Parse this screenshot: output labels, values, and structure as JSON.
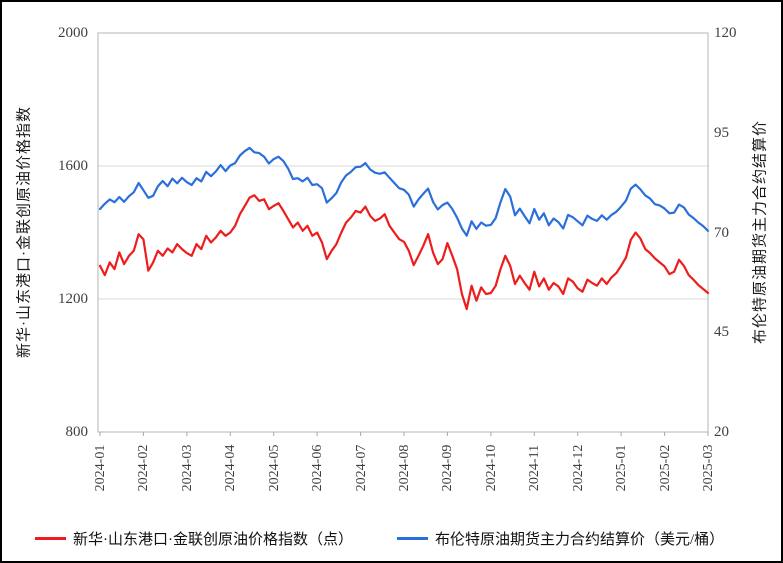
{
  "chart_data": {
    "type": "line",
    "title": "",
    "grid": "horizontal",
    "legend_position": "bottom",
    "categories": [
      "2024-01",
      "2024-02",
      "2024-03",
      "2024-04",
      "2024-05",
      "2024-06",
      "2024-07",
      "2024-08",
      "2024-09",
      "2024-10",
      "2024-11",
      "2024-12",
      "2025-01",
      "2025-02",
      "2025-03"
    ],
    "left_axis": {
      "title": "新华·山东港口·金联创原油价格指数",
      "ticks": [
        "2000",
        "1600",
        "1200",
        "800"
      ],
      "tick_values": [
        2000,
        1600,
        1200,
        800
      ],
      "min": 800,
      "max": 2000
    },
    "right_axis": {
      "title": "布伦特原油期货主力合约结算价",
      "ticks": [
        "120",
        "95",
        "70",
        "45",
        "20"
      ],
      "tick_values": [
        120,
        95,
        70,
        45,
        20
      ],
      "min": 20,
      "max": 120
    },
    "series": [
      {
        "key": "price-index",
        "name": "新华·山东港口·金联创原油价格指数（点）",
        "axis": "left",
        "color": "#ee1d1d",
        "values": [
          1300,
          1272,
          1310,
          1290,
          1340,
          1305,
          1330,
          1345,
          1395,
          1380,
          1285,
          1310,
          1345,
          1330,
          1352,
          1340,
          1365,
          1350,
          1338,
          1330,
          1365,
          1350,
          1390,
          1370,
          1385,
          1405,
          1390,
          1400,
          1420,
          1455,
          1480,
          1505,
          1512,
          1495,
          1500,
          1470,
          1480,
          1488,
          1465,
          1440,
          1415,
          1430,
          1405,
          1420,
          1390,
          1400,
          1370,
          1320,
          1345,
          1365,
          1400,
          1430,
          1445,
          1465,
          1460,
          1478,
          1450,
          1435,
          1442,
          1455,
          1420,
          1400,
          1380,
          1372,
          1345,
          1302,
          1330,
          1360,
          1395,
          1340,
          1305,
          1320,
          1368,
          1330,
          1290,
          1215,
          1170,
          1240,
          1195,
          1235,
          1215,
          1218,
          1240,
          1290,
          1330,
          1300,
          1245,
          1270,
          1248,
          1228,
          1282,
          1238,
          1262,
          1228,
          1248,
          1238,
          1215,
          1262,
          1252,
          1232,
          1222,
          1258,
          1248,
          1240,
          1262,
          1245,
          1265,
          1278,
          1300,
          1325,
          1378,
          1400,
          1382,
          1350,
          1338,
          1322,
          1310,
          1298,
          1275,
          1282,
          1318,
          1300,
          1272,
          1258,
          1242,
          1230,
          1218
        ]
      },
      {
        "key": "brent",
        "name": "布伦特原油期货主力合约结算价（美元/桶）",
        "axis": "right",
        "color": "#2a6fdb",
        "values": [
          75.9,
          77.2,
          78.3,
          77.6,
          78.9,
          77.7,
          79.1,
          80.1,
          82.4,
          80.6,
          78.7,
          79.2,
          81.6,
          82.9,
          81.6,
          83.5,
          82.3,
          83.7,
          82.6,
          81.9,
          83.6,
          82.8,
          85.2,
          84.1,
          85.3,
          86.9,
          85.4,
          86.8,
          87.4,
          89.3,
          90.4,
          91.2,
          90.1,
          89.9,
          89.0,
          87.3,
          88.4,
          89.0,
          87.9,
          86.0,
          83.4,
          83.6,
          82.8,
          83.7,
          81.9,
          82.1,
          81.1,
          77.5,
          78.6,
          79.9,
          82.6,
          84.3,
          85.2,
          86.4,
          86.5,
          87.4,
          85.8,
          85.0,
          84.7,
          85.1,
          83.7,
          82.4,
          81.1,
          80.7,
          79.5,
          76.5,
          78.3,
          79.7,
          81.0,
          77.7,
          75.8,
          76.9,
          77.5,
          75.9,
          73.7,
          71.0,
          69.2,
          72.8,
          70.9,
          72.5,
          71.7,
          71.9,
          73.6,
          77.6,
          80.9,
          79.0,
          74.3,
          76.0,
          74.1,
          72.3,
          75.9,
          73.2,
          74.8,
          71.8,
          73.5,
          72.6,
          71.0,
          74.4,
          73.8,
          72.8,
          71.8,
          74.2,
          73.4,
          72.9,
          74.3,
          73.2,
          74.4,
          75.2,
          76.5,
          78.0,
          81.0,
          82.0,
          80.8,
          79.3,
          78.5,
          77.1,
          76.8,
          76.0,
          74.8,
          75.0,
          77.0,
          76.3,
          74.5,
          73.6,
          72.5,
          71.6,
          70.4
        ]
      }
    ]
  },
  "legend": {
    "items": [
      {
        "label": "新华·山东港口·金联创原油价格指数（点）"
      },
      {
        "label": "布伦特原油期货主力合约结算价（美元/桶）"
      }
    ]
  },
  "colors": {
    "plot_border": "#b5b5b5",
    "grid_line": "#d9d9d9",
    "tick_mark": "#a8a8a8"
  }
}
